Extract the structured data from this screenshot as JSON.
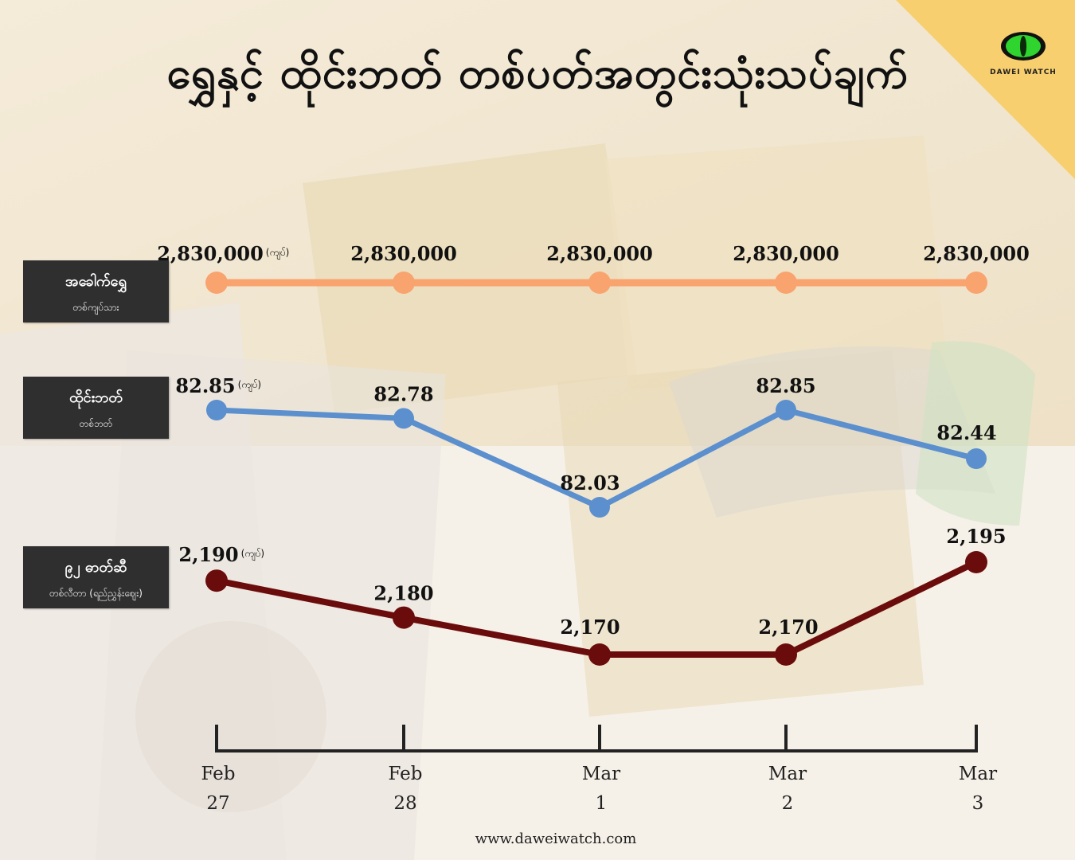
{
  "title": "ရွှေနှင့် ထိုင်းဘတ် တစ်ပတ်အတွင်းသုံးသပ်ချက်",
  "logo": {
    "text": "DAWEI WATCH",
    "icon": "cat-eye-icon"
  },
  "footer": {
    "url": "www.daweiwatch.com"
  },
  "unit_label": "(ကျပ်)",
  "rows": [
    {
      "label": "အခေါက်ရွှေ",
      "sublabel": "တစ်ကျပ်သား"
    },
    {
      "label": "ထိုင်းဘတ်",
      "sublabel": "တစ်ဘတ်"
    },
    {
      "label": "၉၂ ဓာတ်ဆီ",
      "sublabel": "တစ်လီတာ (ရည်ညွှန်းဈေး)"
    }
  ],
  "colors": {
    "gold": "#f9a36f",
    "baht": "#5b8fce",
    "fuel": "#6b0c0c",
    "corner": "#f8cf6e"
  },
  "chart_data": {
    "type": "line",
    "categories": [
      "Feb 27",
      "Feb 28",
      "Mar 1",
      "Mar 2",
      "Mar 3"
    ],
    "x_month": [
      "Feb",
      "Feb",
      "Mar",
      "Mar",
      "Mar"
    ],
    "x_day": [
      "27",
      "28",
      "1",
      "2",
      "3"
    ],
    "series": [
      {
        "name": "အခေါက်ရွှေ",
        "values": [
          2830000,
          2830000,
          2830000,
          2830000,
          2830000
        ],
        "labels": [
          "2,830,000",
          "2,830,000",
          "2,830,000",
          "2,830,000",
          "2,830,000"
        ]
      },
      {
        "name": "ထိုင်းဘတ်",
        "values": [
          82.85,
          82.78,
          82.03,
          82.85,
          82.44
        ],
        "labels": [
          "82.85",
          "82.78",
          "82.03",
          "82.85",
          "82.44"
        ]
      },
      {
        "name": "၉၂ ဓာတ်ဆီ",
        "values": [
          2190,
          2180,
          2170,
          2170,
          2195
        ],
        "labels": [
          "2,190",
          "2,180",
          "2,170",
          "2,170",
          "2,195"
        ]
      }
    ]
  }
}
